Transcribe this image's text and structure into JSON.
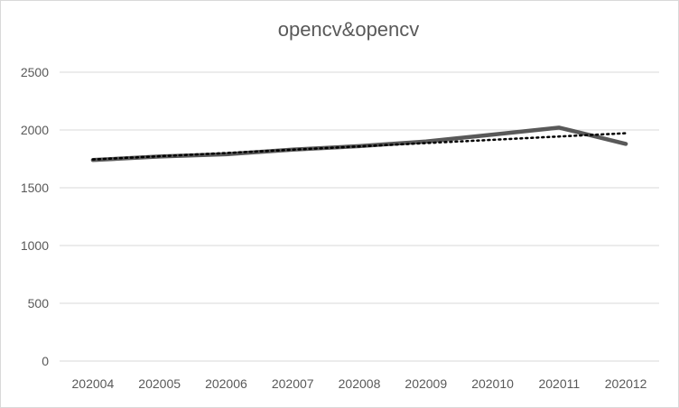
{
  "chart_data": {
    "type": "line",
    "title": "opencv&opencv",
    "categories": [
      "202004",
      "202005",
      "202006",
      "202007",
      "202008",
      "202009",
      "202010",
      "202011",
      "202012"
    ],
    "series": [
      {
        "values": [
          1740,
          1770,
          1790,
          1830,
          1860,
          1900,
          1960,
          2020,
          1880
        ],
        "color": "#595959",
        "style": "solid"
      },
      {
        "values": [
          1745,
          1773,
          1801,
          1830,
          1858,
          1887,
          1915,
          1944,
          1972
        ],
        "color": "#000000",
        "style": "dotted",
        "kind": "linear-trendline"
      }
    ],
    "yticks": [
      0,
      500,
      1000,
      1500,
      2000,
      2500
    ],
    "ylim": [
      0,
      2500
    ],
    "grid": true,
    "xlabel": "",
    "ylabel": ""
  }
}
